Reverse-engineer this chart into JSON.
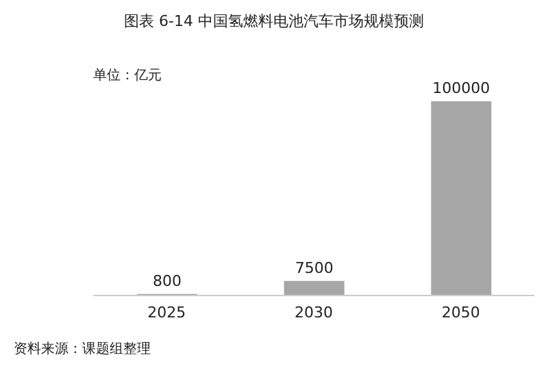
{
  "chart_data": {
    "type": "bar",
    "title": "图表 6-14  中国氢燃料电池汽车市场规模预测",
    "ylabel": "单位：亿元",
    "categories": [
      "2025",
      "2030",
      "2050"
    ],
    "values": [
      800,
      7500,
      100000
    ],
    "color": "#a6a6a6",
    "data_labels": true,
    "tick_labels": "x",
    "grid": false,
    "legend": false,
    "annotations": [
      "资料来源：课题组整理"
    ]
  }
}
